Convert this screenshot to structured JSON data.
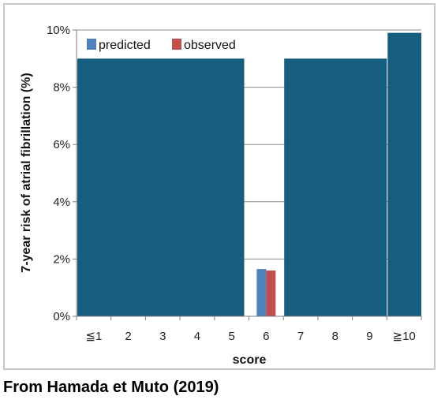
{
  "chart_data": {
    "type": "bar",
    "categories": [
      "≦1",
      "2",
      "3",
      "4",
      "5",
      "6",
      "7",
      "8",
      "9",
      "≧10"
    ],
    "series": [
      {
        "name": "predicted",
        "color": "#4f81bd",
        "values": [
          null,
          null,
          null,
          null,
          null,
          1.65,
          null,
          null,
          null,
          null
        ]
      },
      {
        "name": "observed",
        "color": "#c0504d",
        "values": [
          null,
          null,
          null,
          null,
          null,
          1.6,
          null,
          null,
          null,
          null
        ]
      }
    ],
    "redaction": {
      "color": "#165e7f",
      "values": [
        9.0,
        9.0,
        9.0,
        9.0,
        9.0,
        null,
        9.0,
        9.0,
        9.0,
        9.9
      ]
    },
    "xlabel": "score",
    "ylabel": "7-year risk of atrial fibrillation (%)",
    "ylim": [
      0,
      10
    ],
    "yticks": [
      0,
      2,
      4,
      6,
      8,
      10
    ],
    "ytick_labels": [
      "0%",
      "2%",
      "4%",
      "6%",
      "8%",
      "10%"
    ],
    "grid": true,
    "legend": "top-left"
  },
  "caption": "From Hamada et Muto (2019)"
}
